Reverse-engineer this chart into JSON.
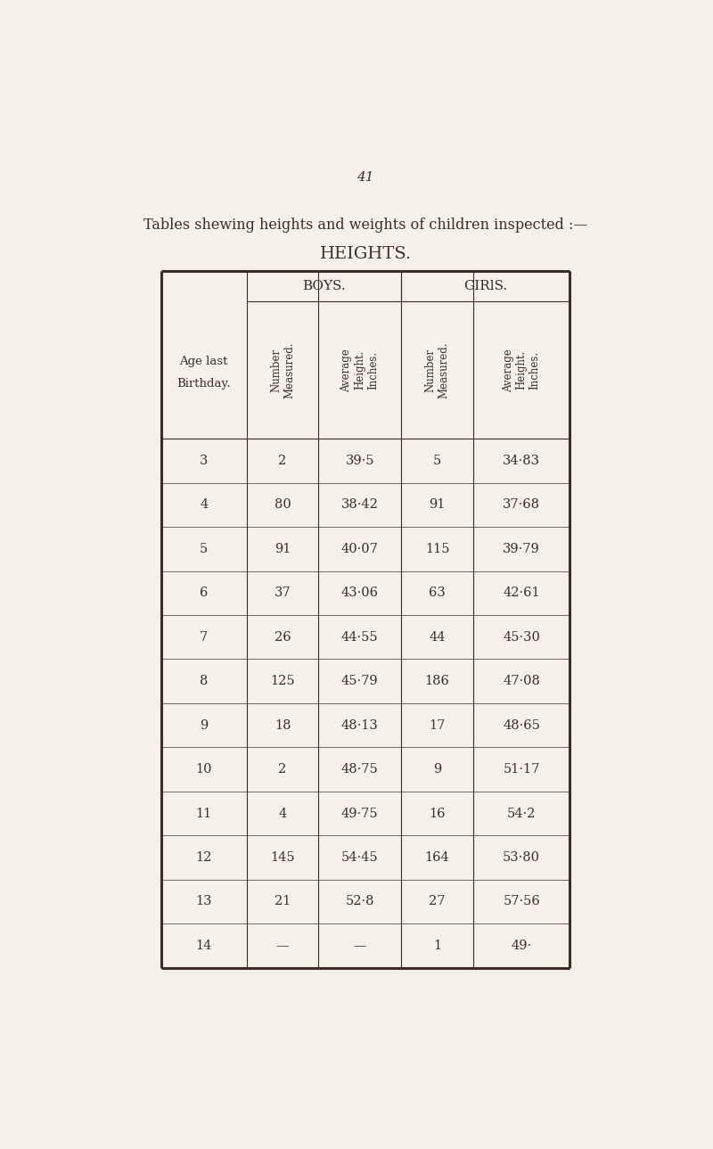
{
  "page_number": "41",
  "title_line1": "Tables shewing heights and weights of children inspected :—",
  "title_line2": "HEIGHTS.",
  "bg_color": "#f5f0e8",
  "text_color": "#3a2e22",
  "boys_header": "BOYS.",
  "girls_header": "GIRlS.",
  "col0_header_line1": "Age last",
  "col0_header_line2": "Birthday.",
  "col1_header": "Number\nMeasured.",
  "col2_header": "Average\nHeight.\nInches.",
  "col3_header": "Number\nMeasured.",
  "col4_header": "Average\nHeight.\nInches.",
  "rows": [
    [
      "3",
      "2",
      "39·5",
      "5",
      "34·83"
    ],
    [
      "4",
      "80",
      "38·42",
      "91",
      "37·68"
    ],
    [
      "5",
      "91",
      "40·07",
      "115",
      "39·79"
    ],
    [
      "6",
      "37",
      "43·06",
      "63",
      "42·61"
    ],
    [
      "7",
      "26",
      "44·55",
      "44",
      "45·30"
    ],
    [
      "8",
      "125",
      "45·79",
      "186",
      "47·08"
    ],
    [
      "9",
      "18",
      "48·13",
      "17",
      "48·65"
    ],
    [
      "10",
      "2",
      "48·75",
      "9",
      "51·17"
    ],
    [
      "11",
      "4",
      "49·75",
      "16",
      "54·2"
    ],
    [
      "12",
      "145",
      "54·45",
      "164",
      "53·80"
    ],
    [
      "13",
      "21",
      "52·8",
      "27",
      "57·56"
    ],
    [
      "14",
      "—",
      "—",
      "1",
      "49·"
    ]
  ]
}
